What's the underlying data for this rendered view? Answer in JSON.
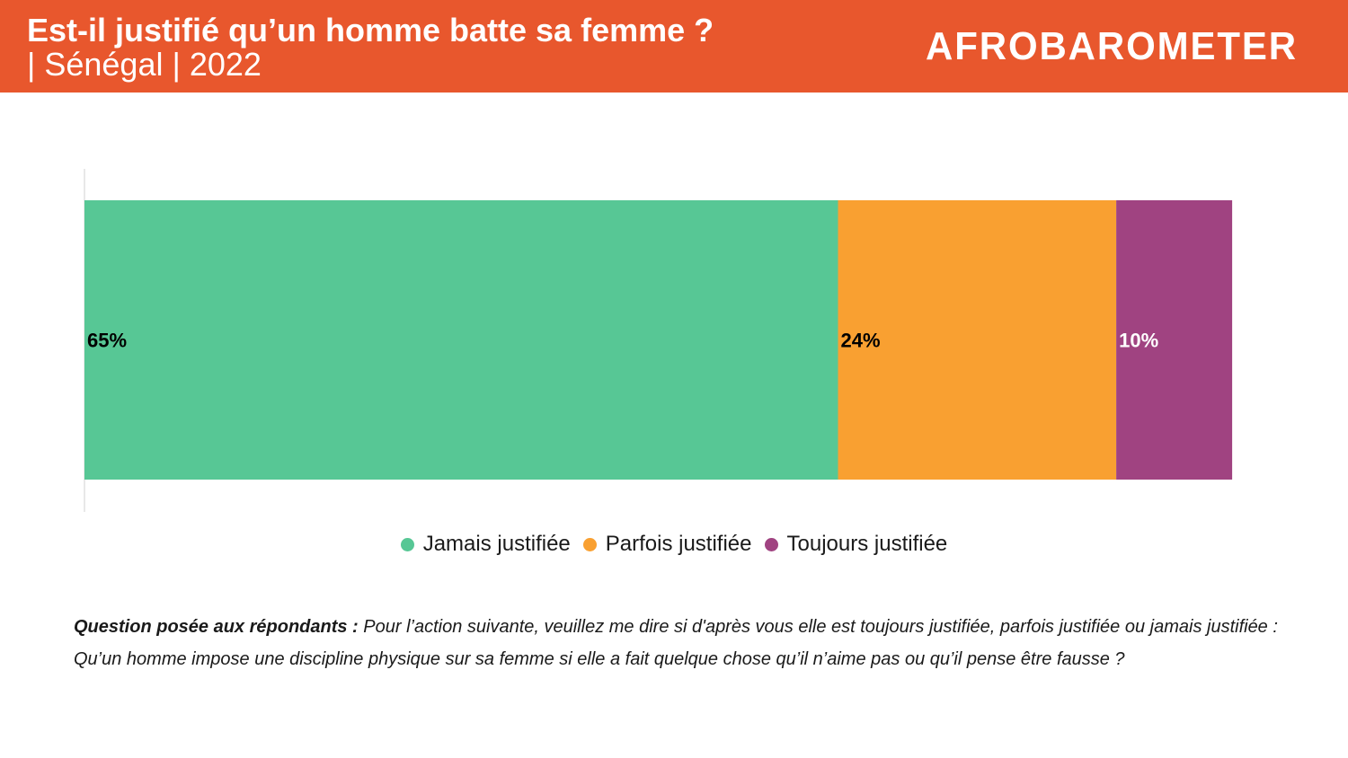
{
  "header": {
    "title": "Est-il justifié qu’un homme batte sa femme ?",
    "subtitle": "| Sénégal | 2022",
    "logo_text": "AFROBAROMETER",
    "background": "#e8572d"
  },
  "chart_data": {
    "type": "bar",
    "orientation": "horizontal",
    "stacked": true,
    "categories": [
      ""
    ],
    "series": [
      {
        "name": "Jamais justifiée",
        "values": [
          65
        ],
        "label": "65%",
        "color": "#57c795",
        "label_color": "#000000"
      },
      {
        "name": "Parfois justifiée",
        "values": [
          24
        ],
        "label": "24%",
        "color": "#f9a031",
        "label_color": "#000000"
      },
      {
        "name": "Toujours justifiée",
        "values": [
          10
        ],
        "label": "10%",
        "color": "#a04381",
        "label_color": "#ffffff"
      }
    ],
    "xlim": [
      0,
      100
    ],
    "grid": false,
    "legend_position": "bottom"
  },
  "footnote": {
    "label": "Question posée aux répondants :",
    "text": " Pour l’action suivante, veuillez me dire si d'après vous elle est toujours justifiée, parfois justifiée ou jamais justifiée : Qu’un homme impose une discipline physique sur sa femme si elle a fait quelque chose qu’il n’aime pas ou qu’il pense être fausse ?"
  }
}
